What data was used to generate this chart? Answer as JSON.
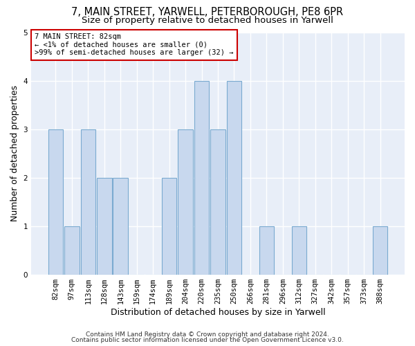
{
  "title": "7, MAIN STREET, YARWELL, PETERBOROUGH, PE8 6PR",
  "subtitle": "Size of property relative to detached houses in Yarwell",
  "xlabel": "Distribution of detached houses by size in Yarwell",
  "ylabel": "Number of detached properties",
  "bar_labels": [
    "82sqm",
    "97sqm",
    "113sqm",
    "128sqm",
    "143sqm",
    "159sqm",
    "174sqm",
    "189sqm",
    "204sqm",
    "220sqm",
    "235sqm",
    "250sqm",
    "266sqm",
    "281sqm",
    "296sqm",
    "312sqm",
    "327sqm",
    "342sqm",
    "357sqm",
    "373sqm",
    "388sqm"
  ],
  "bar_values": [
    3,
    1,
    3,
    2,
    2,
    0,
    0,
    2,
    3,
    4,
    3,
    4,
    0,
    1,
    0,
    1,
    0,
    0,
    0,
    0,
    1
  ],
  "bar_color": "#c8d8ee",
  "bar_edge_color": "#7aaad0",
  "ylim": [
    0,
    5
  ],
  "yticks": [
    0,
    1,
    2,
    3,
    4,
    5
  ],
  "annotation_title": "7 MAIN STREET: 82sqm",
  "annotation_line2": "← <1% of detached houses are smaller (0)",
  "annotation_line3": ">99% of semi-detached houses are larger (32) →",
  "annotation_box_edge_color": "#cc0000",
  "footer_line1": "Contains HM Land Registry data © Crown copyright and database right 2024.",
  "footer_line2": "Contains public sector information licensed under the Open Government Licence v3.0.",
  "background_color": "#ffffff",
  "plot_background_color": "#e8eef8",
  "title_fontsize": 10.5,
  "subtitle_fontsize": 9.5,
  "axis_label_fontsize": 9,
  "tick_fontsize": 7.5,
  "footer_fontsize": 6.5
}
